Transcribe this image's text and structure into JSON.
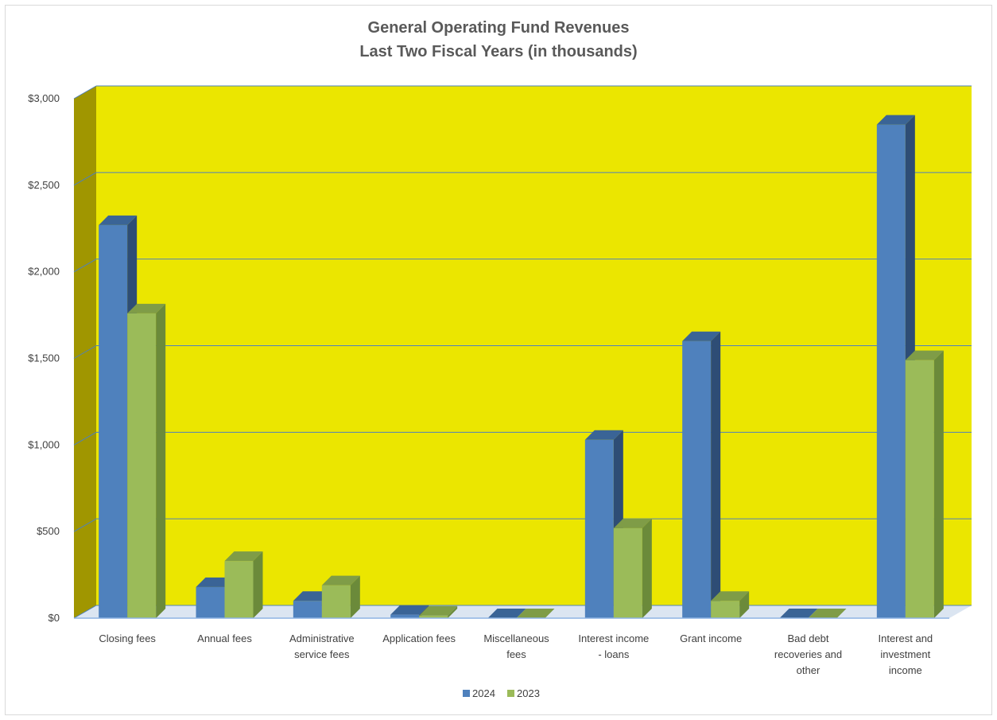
{
  "chart_data": {
    "type": "bar",
    "title": "General Operating Fund Revenues",
    "subtitle": "Last Two Fiscal Years (in thousands)",
    "categories": [
      "Closing fees",
      "Annual fees",
      "Administrative service fees",
      "Application fees",
      "Miscellaneous fees",
      "Interest income - loans",
      "Grant income",
      "Bad debt recoveries and other",
      "Interest and investment income"
    ],
    "category_lines": [
      [
        "Closing fees"
      ],
      [
        "Annual fees"
      ],
      [
        "Administrative",
        "service fees"
      ],
      [
        "Application fees"
      ],
      [
        "Miscellaneous",
        "fees"
      ],
      [
        "Interest income",
        "- loans"
      ],
      [
        "Grant income"
      ],
      [
        "Bad debt",
        "recoveries and",
        "other"
      ],
      [
        "Interest and",
        "investment",
        "income"
      ]
    ],
    "series": [
      {
        "name": "2024",
        "values": [
          2270,
          180,
          100,
          20,
          0,
          1030,
          1600,
          0,
          2850
        ]
      },
      {
        "name": "2023",
        "values": [
          1760,
          330,
          190,
          15,
          0,
          520,
          100,
          0,
          1490
        ]
      }
    ],
    "ylim": [
      0,
      3000
    ],
    "yticks": [
      0,
      500,
      1000,
      1500,
      2000,
      2500,
      3000
    ],
    "ytick_labels": [
      "$0",
      "$500",
      "$1,000",
      "$1,500",
      "$2,000",
      "$2,500",
      "$3,000"
    ],
    "grid": true,
    "legend_position": "bottom",
    "colors": {
      "series_2024": "#4f81bd",
      "series_2024_side": "#2e4d75",
      "series_2024_top": "#3a6496",
      "series_2023": "#9bbb59",
      "series_2023_side": "#6b8a3a",
      "series_2023_top": "#7f9c47",
      "plot_back": "#ebe600",
      "plot_side_wall": "#a09600",
      "gridline": "#4f81bd",
      "floor": "#dbe5f1"
    }
  }
}
